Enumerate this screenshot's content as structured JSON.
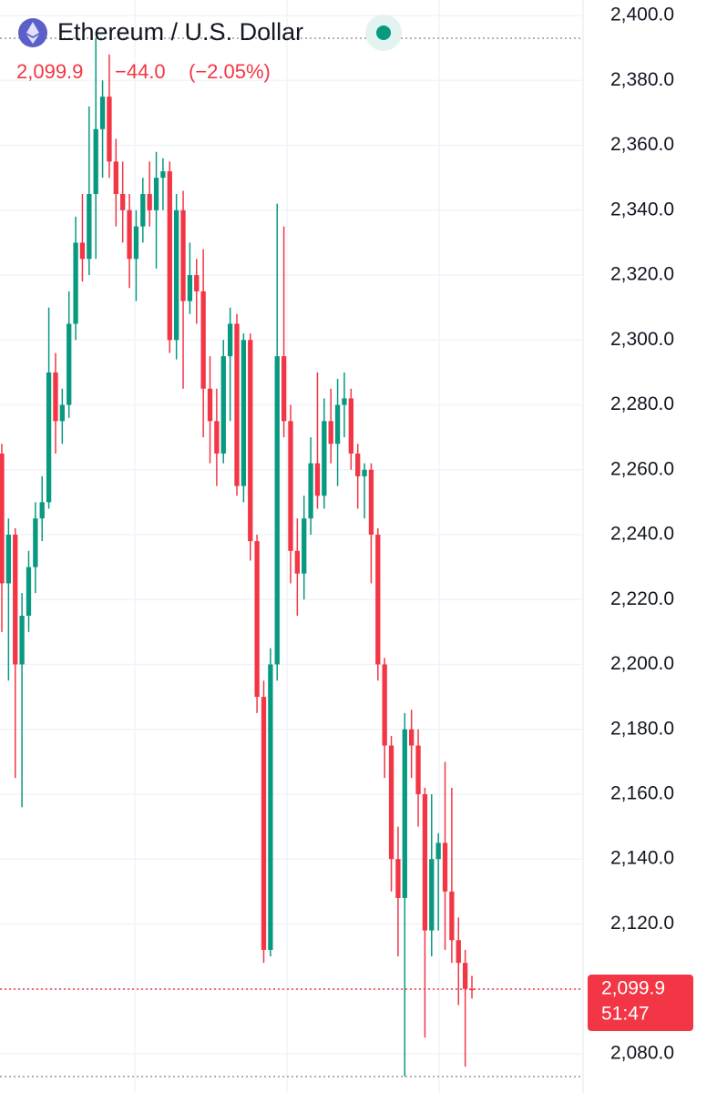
{
  "chart_data": {
    "type": "candlestick",
    "title": "Ethereum / U.S. Dollar",
    "price_label": "2,099.9",
    "change_label": "−44.0",
    "change_pct_label": "(−2.05%)",
    "last_label": "2,099.9",
    "countdown": "51:47",
    "up_color": "#089981",
    "down_color": "#f23645",
    "grid": true,
    "ylim": [
      2067.9,
      2404.8
    ],
    "yticks": [
      {
        "value": 2080,
        "label": "2,080.0"
      },
      {
        "value": 2100,
        "label": "2,100.0"
      },
      {
        "value": 2120,
        "label": "2,120.0"
      },
      {
        "value": 2140,
        "label": "2,140.0"
      },
      {
        "value": 2160,
        "label": "2,160.0"
      },
      {
        "value": 2180,
        "label": "2,180.0"
      },
      {
        "value": 2200,
        "label": "2,200.0"
      },
      {
        "value": 2220,
        "label": "2,220.0"
      },
      {
        "value": 2240,
        "label": "2,240.0"
      },
      {
        "value": 2260,
        "label": "2,260.0"
      },
      {
        "value": 2280,
        "label": "2,280.0"
      },
      {
        "value": 2300,
        "label": "2,300.0"
      },
      {
        "value": 2320,
        "label": "2,320.0"
      },
      {
        "value": 2340,
        "label": "2,340.0"
      },
      {
        "value": 2360,
        "label": "2,360.0"
      },
      {
        "value": 2380,
        "label": "2,380.0"
      },
      {
        "value": 2400,
        "label": "2,400.0"
      }
    ],
    "open": [
      2265,
      2225,
      2240,
      2200,
      2215,
      2230,
      2245,
      2250,
      2290,
      2275,
      2280,
      2305,
      2330,
      2325,
      2345,
      2365,
      2375,
      2355,
      2345,
      2340,
      2325,
      2335,
      2345,
      2340,
      2350,
      2352,
      2300,
      2340,
      2312,
      2320,
      2315,
      2285,
      2275,
      2265,
      2295,
      2305,
      2255,
      2300,
      2238,
      2190,
      2112,
      2200,
      2295,
      2275,
      2235,
      2228,
      2245,
      2262,
      2252,
      2275,
      2268,
      2280,
      2282,
      2265,
      2258,
      2260,
      2240,
      2200,
      2175,
      2140,
      2128,
      2180,
      2175,
      2160,
      2118,
      2140,
      2145,
      2130,
      2115,
      2108,
      2100
    ],
    "high": [
      2268,
      2245,
      2242,
      2222,
      2235,
      2250,
      2258,
      2310,
      2296,
      2285,
      2315,
      2338,
      2345,
      2372,
      2393,
      2380,
      2388,
      2362,
      2355,
      2345,
      2340,
      2350,
      2355,
      2358,
      2356,
      2355,
      2345,
      2346,
      2330,
      2325,
      2328,
      2295,
      2285,
      2300,
      2310,
      2308,
      2302,
      2302,
      2240,
      2195,
      2205,
      2342,
      2335,
      2280,
      2245,
      2252,
      2270,
      2290,
      2282,
      2285,
      2288,
      2290,
      2285,
      2268,
      2262,
      2262,
      2242,
      2202,
      2178,
      2150,
      2185,
      2186,
      2180,
      2162,
      2160,
      2148,
      2170,
      2162,
      2122,
      2112,
      2104
    ],
    "low": [
      2210,
      2195,
      2165,
      2156,
      2210,
      2222,
      2238,
      2248,
      2265,
      2268,
      2276,
      2300,
      2318,
      2320,
      2325,
      2350,
      2350,
      2335,
      2330,
      2316,
      2312,
      2330,
      2335,
      2322,
      2340,
      2296,
      2294,
      2285,
      2308,
      2305,
      2270,
      2262,
      2255,
      2262,
      2275,
      2252,
      2250,
      2232,
      2185,
      2108,
      2110,
      2195,
      2270,
      2225,
      2215,
      2220,
      2240,
      2248,
      2248,
      2262,
      2255,
      2270,
      2260,
      2248,
      2245,
      2225,
      2195,
      2165,
      2130,
      2110,
      2073,
      2165,
      2150,
      2085,
      2110,
      2118,
      2112,
      2108,
      2095,
      2076,
      2097
    ],
    "close": [
      2225,
      2240,
      2200,
      2215,
      2230,
      2245,
      2250,
      2290,
      2275,
      2280,
      2305,
      2330,
      2325,
      2345,
      2365,
      2375,
      2355,
      2345,
      2340,
      2325,
      2335,
      2345,
      2340,
      2350,
      2352,
      2300,
      2340,
      2312,
      2320,
      2315,
      2285,
      2275,
      2265,
      2295,
      2305,
      2255,
      2300,
      2238,
      2190,
      2112,
      2200,
      2295,
      2275,
      2235,
      2228,
      2245,
      2262,
      2252,
      2275,
      2268,
      2280,
      2282,
      2265,
      2258,
      2260,
      2240,
      2200,
      2175,
      2140,
      2128,
      2180,
      2175,
      2160,
      2118,
      2140,
      2145,
      2130,
      2115,
      2108,
      2100,
      2099.9
    ]
  }
}
